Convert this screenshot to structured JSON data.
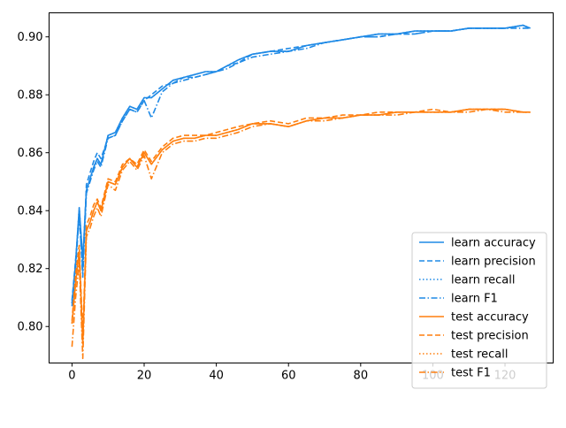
{
  "chart_data": {
    "type": "line",
    "title": "",
    "xlabel": "",
    "ylabel": "",
    "xlim": [
      -6.35,
      133.35
    ],
    "ylim": [
      0.7874,
      0.9083
    ],
    "xticks": [
      0,
      20,
      40,
      60,
      80,
      100,
      120
    ],
    "yticks": [
      0.8,
      0.82,
      0.84,
      0.86,
      0.88,
      0.9
    ],
    "xtick_labels": [
      "0",
      "20",
      "40",
      "60",
      "80",
      "100",
      "120"
    ],
    "ytick_labels": [
      "0.80",
      "0.82",
      "0.84",
      "0.86",
      "0.88",
      "0.90"
    ],
    "grid": false,
    "legend_position": "lower-right",
    "x": [
      0,
      1,
      2,
      3,
      4,
      5,
      6,
      7,
      8,
      10,
      12,
      14,
      16,
      18,
      20,
      22,
      25,
      28,
      31,
      34,
      37,
      40,
      43,
      46,
      50,
      55,
      60,
      65,
      70,
      75,
      80,
      85,
      90,
      95,
      100,
      105,
      110,
      115,
      120,
      125,
      127
    ],
    "series": [
      {
        "name": "learn accuracy",
        "color": "#1f8ae6",
        "dash": "solid",
        "values": [
          0.808,
          0.822,
          0.841,
          0.823,
          0.847,
          0.851,
          0.855,
          0.858,
          0.856,
          0.866,
          0.867,
          0.872,
          0.876,
          0.875,
          0.879,
          0.879,
          0.882,
          0.885,
          0.886,
          0.887,
          0.888,
          0.888,
          0.89,
          0.892,
          0.894,
          0.895,
          0.895,
          0.897,
          0.898,
          0.899,
          0.9,
          0.901,
          0.901,
          0.902,
          0.902,
          0.902,
          0.903,
          0.903,
          0.903,
          0.904,
          0.903
        ]
      },
      {
        "name": "learn precision",
        "color": "#1f8ae6",
        "dash": "6,3",
        "values": [
          0.809,
          0.823,
          0.838,
          0.819,
          0.849,
          0.853,
          0.857,
          0.86,
          0.858,
          0.865,
          0.866,
          0.871,
          0.875,
          0.874,
          0.878,
          0.88,
          0.883,
          0.884,
          0.886,
          0.886,
          0.887,
          0.888,
          0.89,
          0.891,
          0.894,
          0.895,
          0.896,
          0.897,
          0.898,
          0.899,
          0.9,
          0.9,
          0.901,
          0.901,
          0.902,
          0.902,
          0.903,
          0.903,
          0.903,
          0.904,
          0.903
        ]
      },
      {
        "name": "learn recall",
        "color": "#1f8ae6",
        "dash": "1.5,2.5",
        "values": [
          0.808,
          0.822,
          0.841,
          0.823,
          0.847,
          0.851,
          0.855,
          0.858,
          0.856,
          0.866,
          0.867,
          0.872,
          0.876,
          0.875,
          0.879,
          0.879,
          0.882,
          0.885,
          0.886,
          0.887,
          0.888,
          0.888,
          0.89,
          0.892,
          0.894,
          0.895,
          0.895,
          0.897,
          0.898,
          0.899,
          0.9,
          0.901,
          0.901,
          0.902,
          0.902,
          0.902,
          0.903,
          0.903,
          0.903,
          0.904,
          0.903
        ]
      },
      {
        "name": "learn F1",
        "color": "#1f8ae6",
        "dash": "7,2.5,1.5,2.5",
        "values": [
          0.807,
          0.82,
          0.839,
          0.817,
          0.846,
          0.85,
          0.854,
          0.857,
          0.855,
          0.865,
          0.866,
          0.871,
          0.875,
          0.874,
          0.878,
          0.872,
          0.881,
          0.884,
          0.885,
          0.886,
          0.887,
          0.888,
          0.889,
          0.891,
          0.893,
          0.894,
          0.895,
          0.896,
          0.898,
          0.899,
          0.9,
          0.9,
          0.901,
          0.901,
          0.902,
          0.902,
          0.903,
          0.903,
          0.903,
          0.903,
          0.903
        ]
      },
      {
        "name": "test accuracy",
        "color": "#ff7f0e",
        "dash": "solid",
        "values": [
          0.801,
          0.815,
          0.826,
          0.794,
          0.833,
          0.836,
          0.84,
          0.843,
          0.84,
          0.85,
          0.849,
          0.855,
          0.858,
          0.855,
          0.86,
          0.856,
          0.861,
          0.864,
          0.865,
          0.865,
          0.866,
          0.866,
          0.867,
          0.868,
          0.87,
          0.87,
          0.869,
          0.871,
          0.872,
          0.872,
          0.873,
          0.873,
          0.874,
          0.874,
          0.874,
          0.874,
          0.875,
          0.875,
          0.875,
          0.874,
          0.874
        ]
      },
      {
        "name": "test precision",
        "color": "#ff7f0e",
        "dash": "6,3",
        "values": [
          0.802,
          0.818,
          0.828,
          0.797,
          0.835,
          0.838,
          0.842,
          0.844,
          0.841,
          0.851,
          0.85,
          0.856,
          0.858,
          0.856,
          0.861,
          0.857,
          0.862,
          0.865,
          0.866,
          0.866,
          0.866,
          0.867,
          0.868,
          0.869,
          0.87,
          0.871,
          0.87,
          0.872,
          0.872,
          0.873,
          0.873,
          0.874,
          0.874,
          0.874,
          0.875,
          0.874,
          0.875,
          0.875,
          0.875,
          0.874,
          0.874
        ]
      },
      {
        "name": "test recall",
        "color": "#ff7f0e",
        "dash": "1.5,2.5",
        "values": [
          0.801,
          0.815,
          0.826,
          0.794,
          0.833,
          0.836,
          0.84,
          0.843,
          0.84,
          0.85,
          0.849,
          0.855,
          0.858,
          0.855,
          0.86,
          0.856,
          0.861,
          0.864,
          0.865,
          0.865,
          0.866,
          0.866,
          0.867,
          0.868,
          0.87,
          0.87,
          0.869,
          0.871,
          0.872,
          0.872,
          0.873,
          0.873,
          0.874,
          0.874,
          0.874,
          0.874,
          0.875,
          0.875,
          0.875,
          0.874,
          0.874
        ]
      },
      {
        "name": "test F1",
        "color": "#ff7f0e",
        "dash": "7,2.5,1.5,2.5",
        "values": [
          0.793,
          0.81,
          0.822,
          0.789,
          0.831,
          0.834,
          0.838,
          0.841,
          0.838,
          0.849,
          0.847,
          0.854,
          0.857,
          0.854,
          0.859,
          0.851,
          0.86,
          0.863,
          0.864,
          0.864,
          0.865,
          0.865,
          0.866,
          0.867,
          0.869,
          0.87,
          0.869,
          0.871,
          0.871,
          0.872,
          0.873,
          0.873,
          0.873,
          0.874,
          0.874,
          0.874,
          0.874,
          0.875,
          0.874,
          0.874,
          0.874
        ]
      }
    ]
  }
}
